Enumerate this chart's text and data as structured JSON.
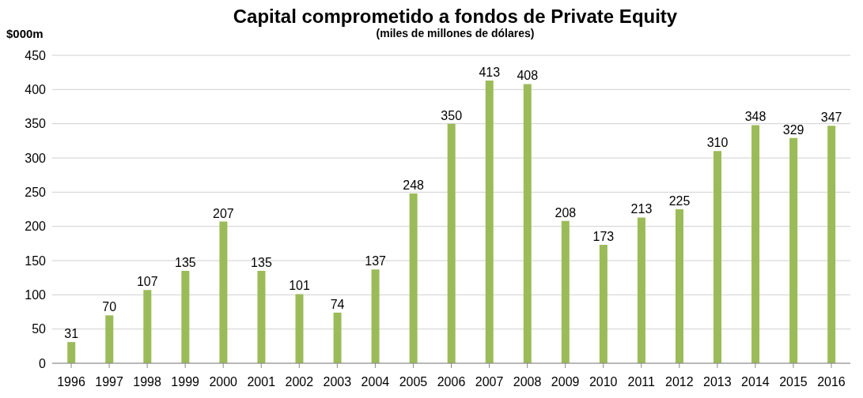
{
  "chart_data": {
    "type": "bar",
    "title": "Capital comprometido a fondos de Private Equity",
    "subtitle": "(miles de millones de dólares)",
    "ylabel": "$000m",
    "categories": [
      "1996",
      "1997",
      "1998",
      "1999",
      "2000",
      "2001",
      "2002",
      "2003",
      "2004",
      "2005",
      "2006",
      "2007",
      "2008",
      "2009",
      "2010",
      "2011",
      "2012",
      "2013",
      "2014",
      "2015",
      "2016"
    ],
    "values": [
      31,
      70,
      107,
      135,
      207,
      135,
      101,
      74,
      137,
      248,
      350,
      413,
      408,
      208,
      173,
      213,
      225,
      310,
      348,
      329,
      347
    ],
    "color": "#9bbb59",
    "ylim": [
      0,
      450
    ],
    "yticks": [
      0,
      50,
      100,
      150,
      200,
      250,
      300,
      350,
      400,
      450
    ],
    "grid": "y",
    "data_labels": true
  }
}
